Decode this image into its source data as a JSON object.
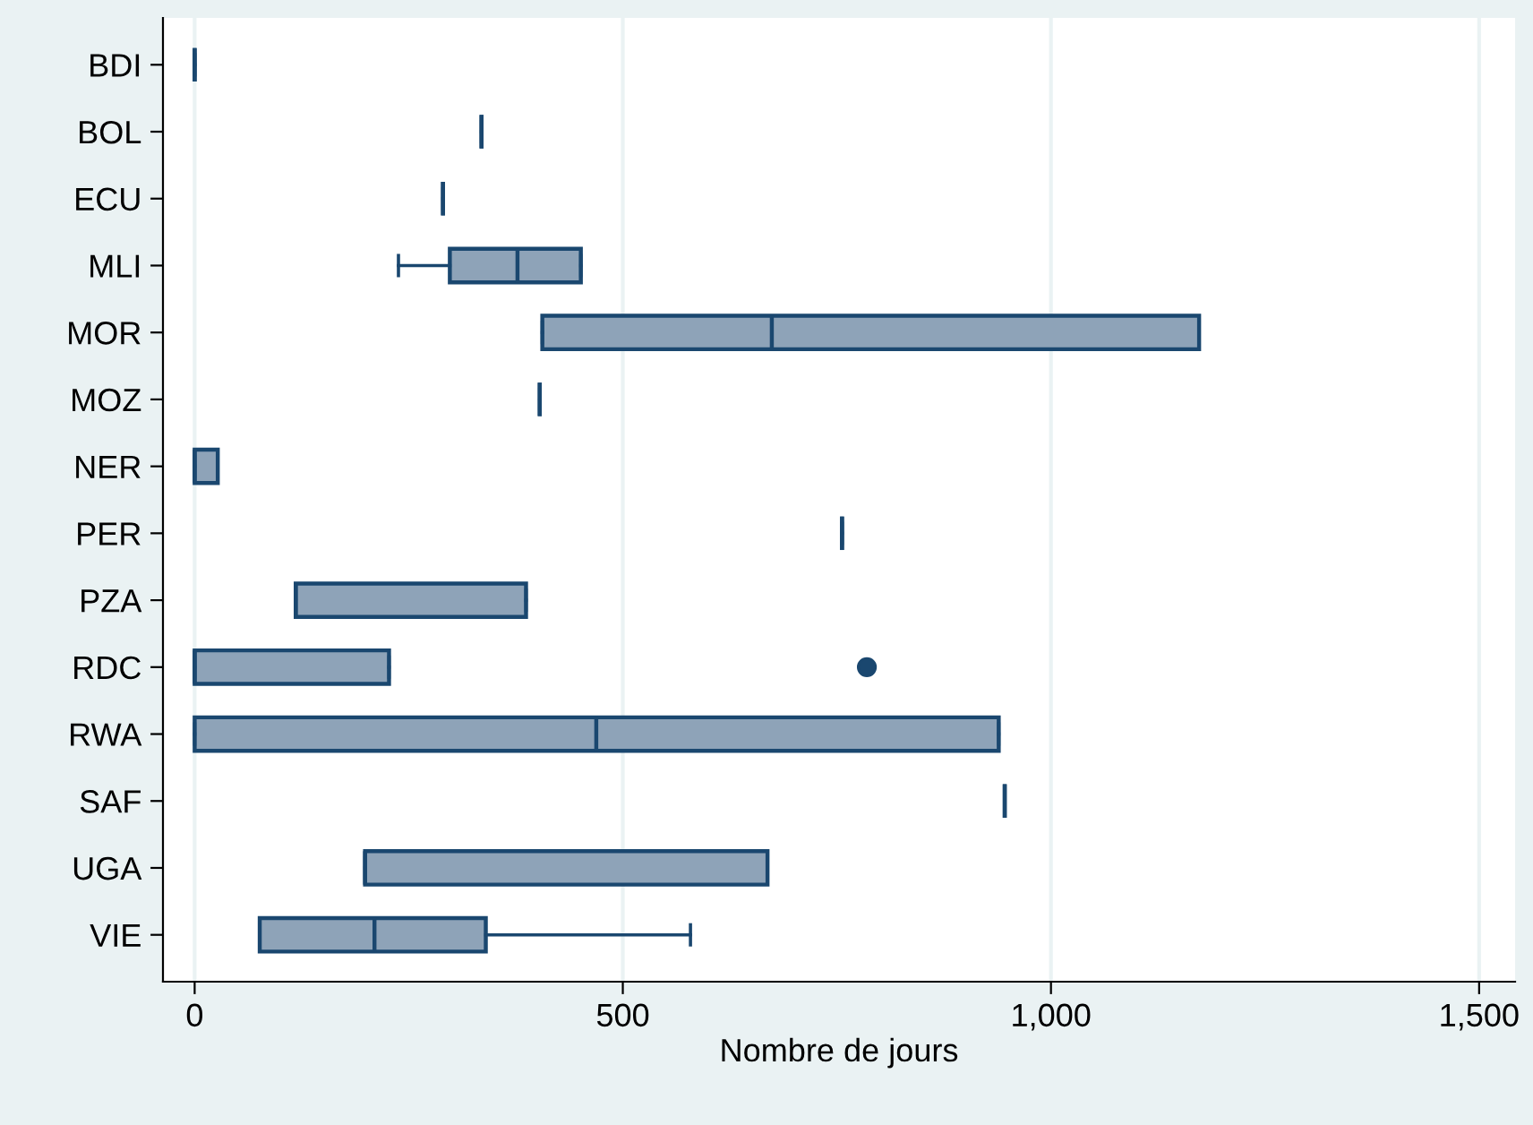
{
  "chart_data": {
    "type": "box",
    "orientation": "horizontal",
    "xlabel": "Nombre de jours",
    "categories": [
      "BDI",
      "BOL",
      "ECU",
      "MLI",
      "MOR",
      "MOZ",
      "NER",
      "PER",
      "PZA",
      "RDC",
      "RWA",
      "SAF",
      "UGA",
      "VIE"
    ],
    "boxes": [
      {
        "low": 0,
        "q1": 0,
        "median": 0,
        "q3": 0,
        "high": 0
      },
      {
        "low": 335,
        "q1": 335,
        "median": 335,
        "q3": 335,
        "high": 335
      },
      {
        "low": 290,
        "q1": 290,
        "median": 290,
        "q3": 290,
        "high": 290
      },
      {
        "low": 238,
        "q1": 298,
        "median": 377,
        "q3": 451,
        "high": 451
      },
      {
        "low": 406,
        "q1": 406,
        "median": 674,
        "q3": 1173,
        "high": 1173
      },
      {
        "low": 403,
        "q1": 403,
        "median": 403,
        "q3": 403,
        "high": 403
      },
      {
        "low": 0,
        "q1": 0,
        "median": 0,
        "q3": 27,
        "high": 27
      },
      {
        "low": 756,
        "q1": 756,
        "median": 756,
        "q3": 756,
        "high": 756
      },
      {
        "low": 118,
        "q1": 118,
        "median": 118,
        "q3": 387,
        "high": 387
      },
      {
        "low": 0,
        "q1": 0,
        "median": 0,
        "q3": 227,
        "high": 227,
        "outliers": [
          785
        ]
      },
      {
        "low": 0,
        "q1": 0,
        "median": 469,
        "q3": 939,
        "high": 939
      },
      {
        "low": 946,
        "q1": 946,
        "median": 946,
        "q3": 946,
        "high": 946
      },
      {
        "low": 199,
        "q1": 199,
        "median": 199,
        "q3": 669,
        "high": 669
      },
      {
        "low": 76,
        "q1": 76,
        "median": 210,
        "q3": 340,
        "high": 579
      }
    ],
    "xlim": [
      -37,
      1542
    ],
    "xticks": [
      0,
      500,
      {
        "value": 1000,
        "label": "1,000"
      },
      {
        "value": 1500,
        "label": "1,500"
      }
    ],
    "grid": "x",
    "legend": false
  }
}
